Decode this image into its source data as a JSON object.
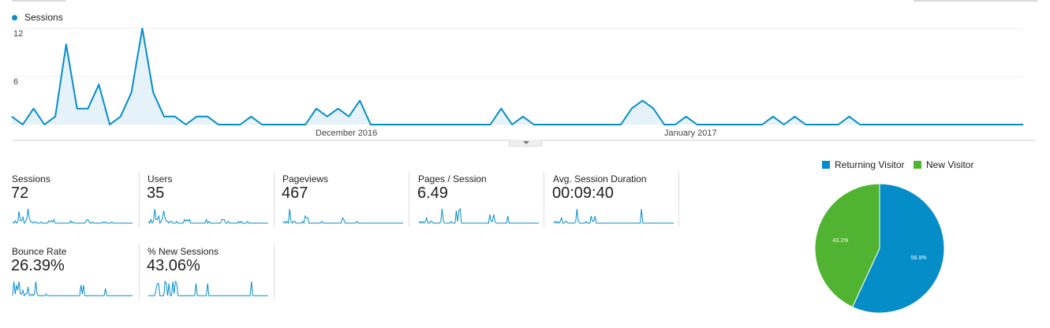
{
  "colors": {
    "accent": "#058dc7",
    "area_fill": "#e6f2f9",
    "returning": "#058dc7",
    "new": "#50b432"
  },
  "legend": {
    "series_label": "Sessions"
  },
  "chart_data": [
    {
      "type": "area",
      "series": [
        {
          "name": "Sessions",
          "values": [
            1,
            0,
            2,
            0,
            1,
            10,
            2,
            2,
            5,
            0,
            1,
            4,
            12,
            4,
            1,
            1,
            0,
            1,
            1,
            0,
            0,
            0,
            1,
            0,
            0,
            0,
            0,
            0,
            2,
            1,
            2,
            1,
            3,
            0,
            0,
            0,
            0,
            0,
            0,
            0,
            0,
            0,
            0,
            0,
            0,
            2,
            0,
            1,
            0,
            0,
            0,
            0,
            0,
            0,
            0,
            0,
            0,
            2,
            3,
            2,
            0,
            0,
            1,
            0,
            0,
            0,
            0,
            0,
            0,
            0,
            1,
            0,
            1,
            0,
            0,
            0,
            0,
            1,
            0,
            0,
            0,
            0,
            0,
            0,
            0,
            0,
            0,
            0,
            0,
            0,
            0,
            0,
            0,
            0
          ]
        }
      ],
      "yticks": [
        "12",
        "6"
      ],
      "ylim": [
        0,
        12
      ],
      "xtick_labels": [
        "December 2016",
        "January 2017"
      ],
      "grid": true
    },
    {
      "type": "pie",
      "labels": [
        "Returning Visitor",
        "New Visitor"
      ],
      "values": [
        56.9,
        43.1
      ],
      "slice_labels": [
        "56.9%",
        "43.1%"
      ],
      "legend_position": "top"
    }
  ],
  "metrics": [
    {
      "label": "Sessions",
      "value": "72",
      "spark": [
        1,
        0,
        2,
        0,
        1,
        10,
        2,
        2,
        5,
        0,
        1,
        4,
        12,
        4,
        1,
        1,
        0,
        1,
        1,
        0,
        0,
        0,
        1,
        0,
        0,
        0,
        0,
        0,
        2,
        1,
        2,
        1,
        3,
        0,
        0,
        0,
        0,
        0,
        0,
        0,
        0,
        0,
        0,
        0,
        0,
        2,
        0,
        1,
        0,
        0,
        0,
        0,
        0,
        0,
        0,
        0,
        0,
        2,
        3,
        2,
        0,
        0,
        1,
        0,
        0,
        0,
        0,
        0,
        0,
        0,
        1,
        0,
        1,
        0,
        0,
        0,
        0,
        1,
        0,
        0,
        0,
        0,
        0,
        0,
        0,
        0,
        0,
        0,
        0,
        0,
        0,
        0,
        0,
        0
      ]
    },
    {
      "label": "Users",
      "value": "35",
      "spark": [
        1,
        0,
        2,
        0,
        1,
        8,
        2,
        2,
        4,
        0,
        1,
        3,
        7,
        3,
        1,
        1,
        0,
        1,
        1,
        0,
        0,
        0,
        1,
        0,
        0,
        0,
        0,
        0,
        2,
        1,
        2,
        1,
        2,
        0,
        0,
        0,
        0,
        0,
        0,
        0,
        0,
        0,
        0,
        0,
        0,
        2,
        0,
        1,
        0,
        0,
        0,
        0,
        0,
        0,
        0,
        0,
        0,
        2,
        2,
        2,
        0,
        0,
        1,
        0,
        0,
        0,
        0,
        0,
        0,
        0,
        1,
        0,
        1,
        0,
        0,
        0,
        0,
        1,
        0,
        0,
        0,
        0,
        0,
        0,
        0,
        0,
        0,
        0,
        0,
        0,
        0,
        0,
        0,
        0
      ]
    },
    {
      "label": "Pageviews",
      "value": "467",
      "spark": [
        0,
        1,
        0,
        1,
        0,
        8,
        1,
        0,
        1,
        1,
        0,
        0,
        0,
        0,
        0,
        1,
        0,
        4,
        3,
        3,
        0,
        0,
        0,
        0,
        0,
        0,
        0,
        0,
        0,
        0,
        1,
        0,
        0,
        0,
        0,
        0,
        0,
        0,
        0,
        0,
        0,
        0,
        0,
        0,
        0,
        0,
        3,
        2,
        0,
        0,
        0,
        0,
        0,
        0,
        0,
        0,
        0,
        1,
        0,
        0,
        0,
        0,
        0,
        0,
        0,
        0,
        0,
        0,
        0,
        0,
        0,
        0,
        0,
        0,
        0,
        0,
        0,
        0,
        0,
        0,
        0,
        0,
        0,
        0,
        0,
        0,
        0,
        0,
        0,
        0,
        0,
        0,
        0,
        0
      ]
    },
    {
      "label": "Pages / Session",
      "value": "6.49",
      "spark": [
        0,
        1,
        0,
        1,
        0,
        1,
        3,
        0,
        0,
        1,
        1,
        0,
        0,
        0,
        0,
        0,
        0,
        1,
        8,
        1,
        0,
        0,
        0,
        0,
        0,
        1,
        0,
        0,
        0,
        7,
        1,
        7,
        8,
        0,
        0,
        0,
        0,
        0,
        0,
        0,
        0,
        0,
        0,
        0,
        0,
        0,
        0,
        0,
        0,
        0,
        0,
        0,
        0,
        0,
        0,
        5,
        1,
        1,
        5,
        1,
        0,
        0,
        0,
        0,
        0,
        0,
        0,
        0,
        0,
        4,
        0,
        0,
        0,
        0,
        0,
        0,
        0,
        0,
        0,
        0,
        0,
        0,
        0,
        0,
        0,
        0,
        0,
        0,
        0,
        0,
        0,
        0,
        0,
        0
      ]
    },
    {
      "label": "Avg. Session Duration",
      "value": "00:09:40",
      "spark": [
        0,
        1,
        0,
        1,
        0,
        1,
        3,
        0,
        0,
        1,
        1,
        0,
        0,
        0,
        0,
        0,
        0,
        1,
        8,
        1,
        0,
        0,
        0,
        0,
        0,
        1,
        0,
        0,
        0,
        4,
        1,
        1,
        4,
        0,
        0,
        0,
        0,
        0,
        0,
        0,
        0,
        0,
        0,
        0,
        0,
        0,
        0,
        0,
        0,
        0,
        0,
        0,
        0,
        0,
        0,
        0,
        0,
        0,
        0,
        0,
        0,
        0,
        0,
        0,
        0,
        0,
        0,
        0,
        8,
        0,
        0,
        0,
        0,
        0,
        0,
        0,
        0,
        0,
        0,
        0,
        0,
        0,
        0,
        0,
        0,
        0,
        0,
        0,
        0,
        0,
        0,
        0,
        0,
        0
      ]
    },
    {
      "label": "Bounce Rate",
      "value": "26.39%",
      "spark": [
        0,
        8,
        1,
        6,
        3,
        8,
        1,
        1,
        3,
        0,
        1,
        1,
        5,
        0,
        0,
        1,
        0,
        1,
        8,
        1,
        0,
        0,
        0,
        0,
        0,
        0,
        1,
        0,
        0,
        0,
        0,
        0,
        0,
        0,
        0,
        0,
        0,
        0,
        0,
        0,
        0,
        0,
        0,
        0,
        0,
        0,
        0,
        0,
        0,
        0,
        0,
        0,
        0,
        6,
        1,
        6,
        0,
        0,
        0,
        0,
        0,
        0,
        0,
        0,
        0,
        0,
        0,
        0,
        0,
        0,
        0,
        0,
        4,
        0,
        0,
        0,
        0,
        0,
        0,
        0,
        0,
        0,
        0,
        0,
        0,
        0,
        0,
        0,
        0,
        0,
        0,
        0,
        0,
        0
      ]
    },
    {
      "label": "% New Sessions",
      "value": "43.06%",
      "spark": [
        0,
        0,
        0,
        0,
        0,
        0,
        3,
        6,
        6,
        0,
        0,
        0,
        0,
        7,
        6,
        0,
        6,
        0,
        0,
        7,
        1,
        7,
        6,
        0,
        0,
        0,
        0,
        0,
        0,
        0,
        0,
        0,
        0,
        0,
        0,
        0,
        0,
        6,
        0,
        0,
        0,
        0,
        0,
        0,
        0,
        0,
        6,
        0,
        0,
        0,
        0,
        0,
        0,
        0,
        0,
        0,
        0,
        0,
        0,
        0,
        0,
        0,
        0,
        0,
        0,
        0,
        0,
        0,
        0,
        0,
        0,
        0,
        0,
        0,
        0,
        0,
        0,
        0,
        0,
        0,
        7,
        0,
        0,
        0,
        0,
        0,
        0,
        0,
        0,
        0,
        0,
        0,
        0,
        0
      ]
    }
  ]
}
